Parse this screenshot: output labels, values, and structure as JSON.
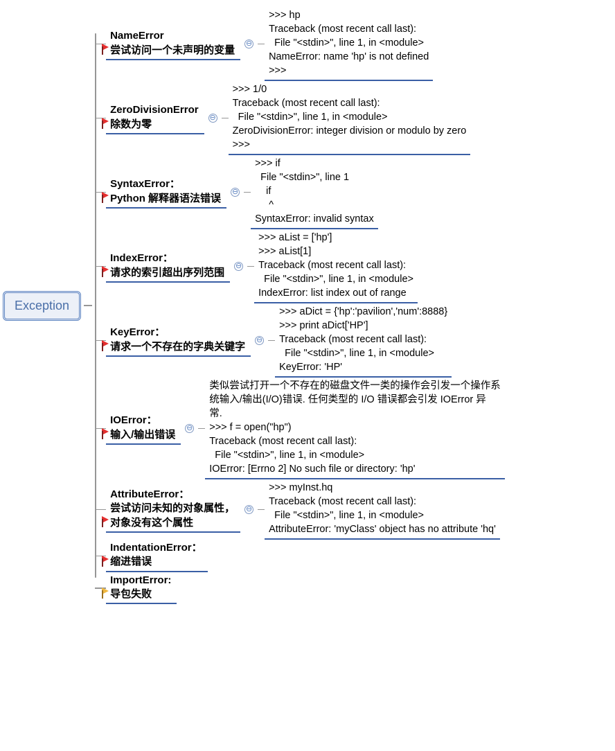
{
  "type": "mindmap",
  "colors": {
    "line": "#969696",
    "underline": "#3a5fa5",
    "root_border": "#5b82c0",
    "root_text": "#4a6fa8",
    "root_bg": "#ecf0f8",
    "flag_red": "#e53030",
    "flag_yellow": "#f0b840",
    "text": "#000000",
    "background": "#ffffff"
  },
  "typography": {
    "root_fontsize": 18,
    "node_fontsize": 15,
    "leaf_fontsize": 14.5,
    "node_weight": 700
  },
  "collapse_glyph": "⊖",
  "root": {
    "label": "Exception"
  },
  "nodes": [
    {
      "flag": "red",
      "title": "NameError",
      "subtitle": "尝试访问一个未声明的变量",
      "has_leaf": true,
      "leaf": ">>> hp\nTraceback (most recent call last):\n  File \"<stdin>\", line 1, in <module>\nNameError: name 'hp' is not defined\n>>>"
    },
    {
      "flag": "red",
      "title": "ZeroDivisionError",
      "subtitle": "除数为零",
      "has_leaf": true,
      "leaf": ">>> 1/0\nTraceback (most recent call last):\n  File \"<stdin>\", line 1, in <module>\nZeroDivisionError: integer division or modulo by zero\n>>>"
    },
    {
      "flag": "red",
      "title": "SyntaxError：",
      "subtitle": "Python 解释器语法错误",
      "has_leaf": true,
      "leaf": ">>> if\n  File \"<stdin>\", line 1\n    if\n     ^\nSyntaxError: invalid syntax"
    },
    {
      "flag": "red",
      "title": "IndexError：",
      "subtitle": "请求的索引超出序列范围",
      "has_leaf": true,
      "leaf": ">>> aList = ['hp']\n>>> aList[1]\nTraceback (most recent call last):\n  File \"<stdin>\", line 1, in <module>\nIndexError: list index out of range"
    },
    {
      "flag": "red",
      "title": "KeyError：",
      "subtitle": "请求一个不存在的字典关键字",
      "has_leaf": true,
      "leaf": ">>> aDict = {'hp':'pavilion','num':8888}\n>>> print aDict['HP']\nTraceback (most recent call last):\n  File \"<stdin>\", line 1, in <module>\nKeyError: 'HP'"
    },
    {
      "flag": "red",
      "title": "IOError：",
      "subtitle": "输入/输出错误",
      "has_leaf": true,
      "leaf": "类似尝试打开一个不存在的磁盘文件一类的操作会引发一个操作系\n统输入/输出(I/O)错误. 任何类型的 I/O 错误都会引发 IOError 异\n常.\n>>> f = open(\"hp\")\nTraceback (most recent call last):\n  File \"<stdin>\", line 1, in <module>\nIOError: [Errno 2] No such file or directory: 'hp'"
    },
    {
      "flag": "red",
      "title": "AttributeError：",
      "subtitle": "尝试访问未知的对象属性，",
      "subtitle2": "对象没有这个属性",
      "has_leaf": true,
      "leaf": ">>> myInst.hq\nTraceback (most recent call last):\n  File \"<stdin>\", line 1, in <module>\nAttributeError: 'myClass' object has no attribute 'hq'"
    },
    {
      "flag": "red",
      "title": "IndentationError：",
      "subtitle": "缩进错误",
      "has_leaf": false
    },
    {
      "flag": "yellow",
      "title": "ImportError:",
      "subtitle": "导包失败",
      "has_leaf": false
    }
  ]
}
